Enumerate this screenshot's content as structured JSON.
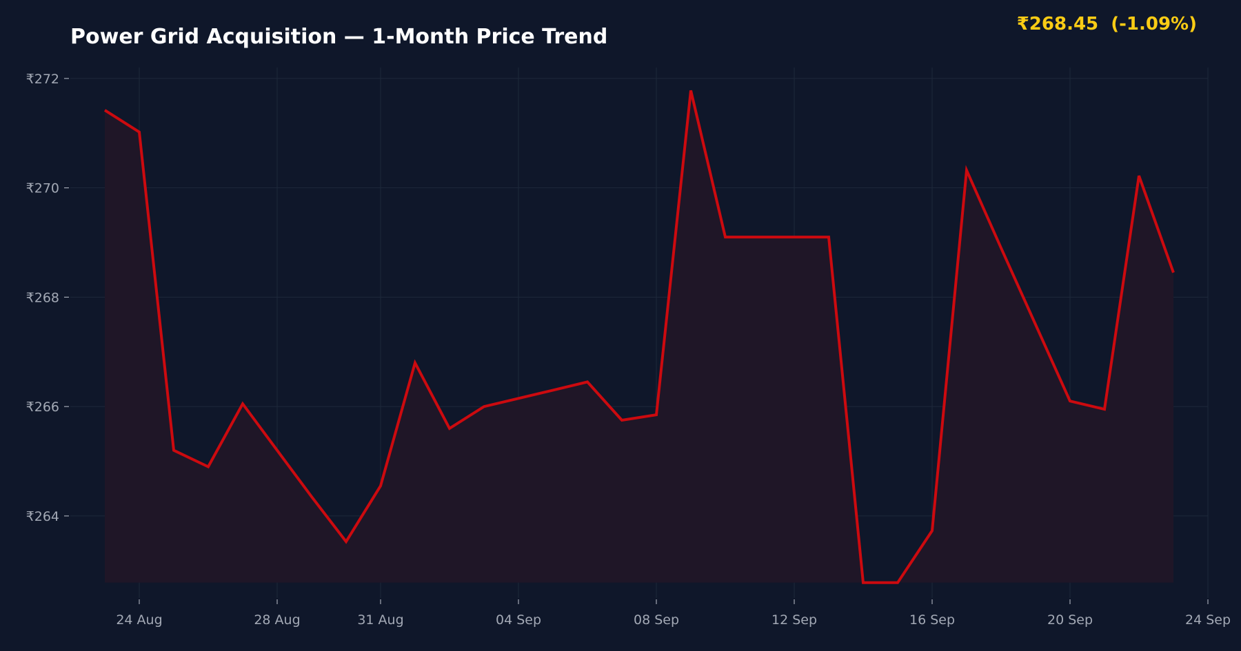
{
  "header": {
    "title": "Power Grid Acquisition — 1-Month Price Trend",
    "price": "₹268.45",
    "change": "(-1.09%)"
  },
  "chart_data": {
    "type": "area",
    "title": "Power Grid Acquisition — 1-Month Price Trend",
    "xlabel": "",
    "ylabel": "",
    "x": [
      "2024-08-23",
      "2024-08-24",
      "2024-08-25",
      "2024-08-26",
      "2024-08-27",
      "2024-08-28",
      "2024-08-29",
      "2024-08-30",
      "2024-08-31",
      "2024-09-01",
      "2024-09-02",
      "2024-09-03",
      "2024-09-04",
      "2024-09-05",
      "2024-09-06",
      "2024-09-07",
      "2024-09-08",
      "2024-09-09",
      "2024-09-10",
      "2024-09-11",
      "2024-09-12",
      "2024-09-13",
      "2024-09-14",
      "2024-09-15",
      "2024-09-16",
      "2024-09-17",
      "2024-09-18",
      "2024-09-19",
      "2024-09-20",
      "2024-09-21",
      "2024-09-22",
      "2024-09-23"
    ],
    "series": [
      {
        "values": [
          271.42,
          271.02,
          265.2,
          264.9,
          266.05,
          265.2,
          264.35,
          263.53,
          264.55,
          266.8,
          265.6,
          266.0,
          266.15,
          266.3,
          266.45,
          265.75,
          265.85,
          271.78,
          269.1,
          269.1,
          269.1,
          269.1,
          262.78,
          262.78,
          263.73,
          270.32,
          268.9,
          267.5,
          266.1,
          265.95,
          270.22,
          268.45
        ]
      }
    ],
    "xlim": [
      "2024-08-22",
      "2024-09-24"
    ],
    "ylim": [
      262.5,
      272.2
    ],
    "x_ticks": [
      {
        "date": "2024-08-24",
        "label": "24 Aug"
      },
      {
        "date": "2024-08-28",
        "label": "28 Aug"
      },
      {
        "date": "2024-08-31",
        "label": "31 Aug"
      },
      {
        "date": "2024-09-04",
        "label": "04 Sep"
      },
      {
        "date": "2024-09-08",
        "label": "08 Sep"
      },
      {
        "date": "2024-09-12",
        "label": "12 Sep"
      },
      {
        "date": "2024-09-16",
        "label": "16 Sep"
      },
      {
        "date": "2024-09-20",
        "label": "20 Sep"
      },
      {
        "date": "2024-09-24",
        "label": "24 Sep"
      }
    ],
    "y_ticks": [
      {
        "value": 264,
        "label": "₹264"
      },
      {
        "value": 266,
        "label": "₹266"
      },
      {
        "value": 268,
        "label": "₹268"
      },
      {
        "value": 270,
        "label": "₹270"
      },
      {
        "value": 272,
        "label": "₹272"
      }
    ],
    "grid": true,
    "legend": "none",
    "colors": {
      "line": "#cc0a0f",
      "fill": "#1f1627",
      "grid": "#1e293b",
      "background": "#0f172a",
      "tick_text": "#a3a9b5",
      "badge": "#facc15"
    }
  }
}
